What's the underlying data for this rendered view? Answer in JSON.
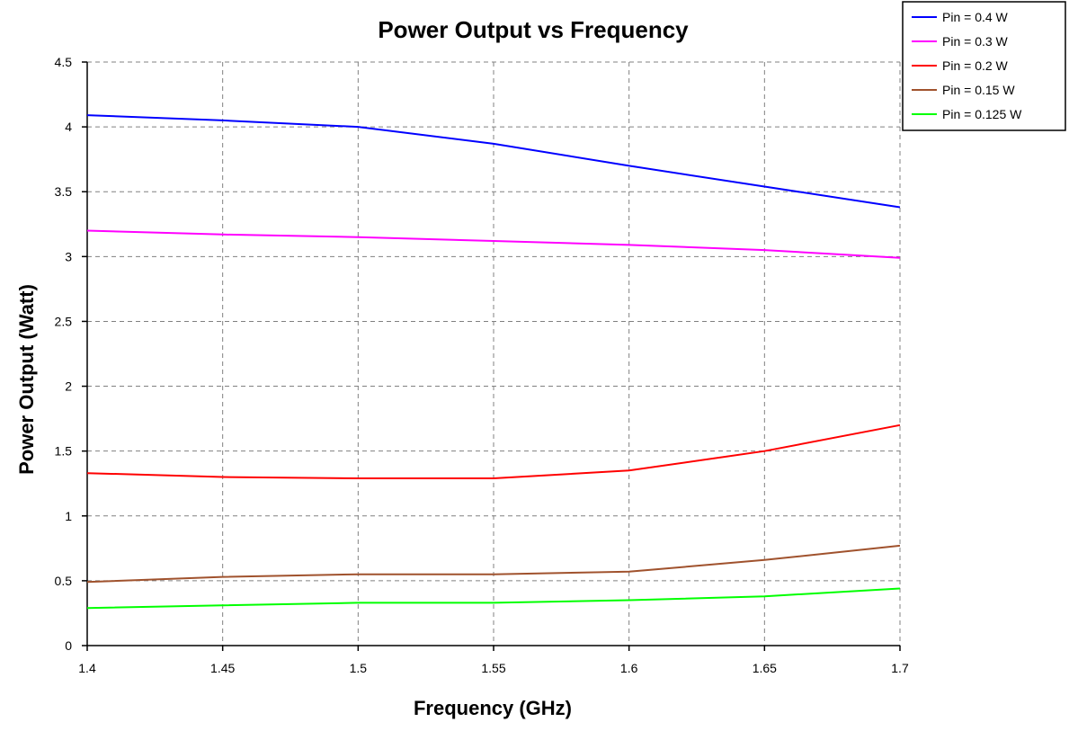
{
  "chart_data": {
    "type": "line",
    "title": "Power Output vs Frequency",
    "xlabel": "Frequency (GHz)",
    "ylabel": "Power Output (Watt)",
    "xlim": [
      1.4,
      1.7
    ],
    "ylim": [
      0,
      4.5
    ],
    "x_ticks": [
      "1.4",
      "1.45",
      "1.5",
      "1.55",
      "1.6",
      "1.65",
      "1.7"
    ],
    "y_ticks": [
      "0",
      "0.5",
      "1",
      "1.5",
      "2",
      "2.5",
      "3",
      "3.5",
      "4",
      "4.5"
    ],
    "grid": true,
    "legend_position": "top-right",
    "x": [
      1.4,
      1.45,
      1.5,
      1.55,
      1.6,
      1.65,
      1.7
    ],
    "series": [
      {
        "name": "Pin = 0.4 W",
        "color": "#0000ff",
        "values": [
          4.09,
          4.05,
          4.0,
          3.87,
          3.7,
          3.54,
          3.38
        ]
      },
      {
        "name": "Pin = 0.3 W",
        "color": "#ff00ff",
        "values": [
          3.2,
          3.17,
          3.15,
          3.12,
          3.09,
          3.05,
          2.99
        ]
      },
      {
        "name": "Pin = 0.2 W",
        "color": "#ff0000",
        "values": [
          1.33,
          1.3,
          1.29,
          1.29,
          1.35,
          1.5,
          1.7
        ]
      },
      {
        "name": "Pin = 0.15 W",
        "color": "#a0522d",
        "values": [
          0.49,
          0.53,
          0.55,
          0.55,
          0.57,
          0.66,
          0.77
        ]
      },
      {
        "name": "Pin = 0.125 W",
        "color": "#00ff00",
        "values": [
          0.29,
          0.31,
          0.33,
          0.33,
          0.35,
          0.38,
          0.44
        ]
      }
    ]
  }
}
